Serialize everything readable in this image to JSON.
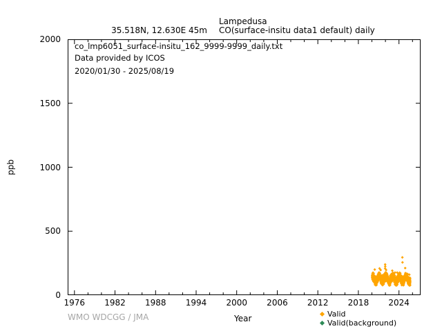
{
  "header": {
    "station": "Lampedusa",
    "location": "35.518N, 12.630E 45m",
    "dataset": "CO(surface-insitu data1 default) daily"
  },
  "plot_annotations": {
    "filename": "co_lmp6051_surface-insitu_162_9999-9999_daily.txt",
    "provider": "Data provided by ICOS",
    "period": "2020/01/30 - 2025/08/19"
  },
  "footer": {
    "credit": "WMO WDCGG / JMA"
  },
  "legend": {
    "items": [
      {
        "label": "Valid",
        "color": "#FFA500"
      },
      {
        "label": "Valid(background)",
        "color": "#2E8B57"
      }
    ]
  },
  "chart_data": {
    "type": "scatter",
    "title": "Lampedusa CO(surface-insitu data1 default) daily",
    "xlabel": "Year",
    "ylabel": "ppb",
    "xlim": [
      1975,
      2027.2
    ],
    "ylim": [
      0,
      2000
    ],
    "xticks_major": [
      1976,
      1982,
      1988,
      1994,
      2000,
      2006,
      2012,
      2018,
      2024
    ],
    "xtick_minor_step": 2,
    "yticks": [
      0,
      500,
      1000,
      1500,
      2000
    ],
    "grid": false,
    "legend_position": "bottom-right",
    "data_period": "2020/01/30 - 2025/08/19",
    "series": [
      {
        "name": "Valid",
        "color": "#FFA500",
        "daily_spread_ppb": 40,
        "monthly_means": [
          [
            2020.08,
            143
          ],
          [
            2020.17,
            146
          ],
          [
            2020.25,
            138
          ],
          [
            2020.33,
            127
          ],
          [
            2020.42,
            114
          ],
          [
            2020.5,
            105
          ],
          [
            2020.58,
            101
          ],
          [
            2020.67,
            106
          ],
          [
            2020.75,
            115
          ],
          [
            2020.83,
            126
          ],
          [
            2020.92,
            136
          ],
          [
            2021.0,
            143
          ],
          [
            2021.08,
            149
          ],
          [
            2021.17,
            146
          ],
          [
            2021.25,
            137
          ],
          [
            2021.33,
            125
          ],
          [
            2021.42,
            112
          ],
          [
            2021.5,
            104
          ],
          [
            2021.58,
            102
          ],
          [
            2021.67,
            109
          ],
          [
            2021.75,
            118
          ],
          [
            2021.83,
            129
          ],
          [
            2021.92,
            139
          ],
          [
            2022.0,
            145
          ],
          [
            2022.08,
            151
          ],
          [
            2022.17,
            147
          ],
          [
            2022.25,
            136
          ],
          [
            2022.33,
            124
          ],
          [
            2022.42,
            111
          ],
          [
            2022.5,
            103
          ],
          [
            2022.58,
            100
          ],
          [
            2022.67,
            107
          ],
          [
            2022.75,
            116
          ],
          [
            2022.83,
            127
          ],
          [
            2022.92,
            138
          ],
          [
            2023.0,
            144
          ],
          [
            2023.08,
            150
          ],
          [
            2023.17,
            145
          ],
          [
            2023.25,
            135
          ],
          [
            2023.33,
            123
          ],
          [
            2023.42,
            110
          ],
          [
            2023.5,
            102
          ],
          [
            2023.58,
            99
          ],
          [
            2023.67,
            105
          ],
          [
            2023.75,
            114
          ],
          [
            2023.83,
            126
          ],
          [
            2023.92,
            137
          ],
          [
            2024.0,
            143
          ],
          [
            2024.08,
            148
          ],
          [
            2024.17,
            144
          ],
          [
            2024.25,
            134
          ],
          [
            2024.33,
            122
          ],
          [
            2024.42,
            112
          ],
          [
            2024.5,
            108
          ],
          [
            2024.58,
            104
          ],
          [
            2024.67,
            110
          ],
          [
            2024.75,
            117
          ],
          [
            2024.83,
            128
          ],
          [
            2024.92,
            138
          ],
          [
            2025.0,
            144
          ],
          [
            2025.08,
            149
          ],
          [
            2025.17,
            145
          ],
          [
            2025.25,
            135
          ],
          [
            2025.33,
            123
          ],
          [
            2025.42,
            111
          ],
          [
            2025.5,
            104
          ],
          [
            2025.58,
            103
          ],
          [
            2025.63,
            105
          ]
        ],
        "outliers": [
          [
            2024.5,
            295
          ],
          [
            2024.52,
            256
          ],
          [
            2021.96,
            240
          ],
          [
            2021.97,
            224
          ],
          [
            2021.95,
            209
          ],
          [
            2024.92,
            212
          ],
          [
            2020.42,
            200
          ],
          [
            2021.3,
            196
          ]
        ]
      },
      {
        "name": "Valid(background)",
        "color": "#2E8B57",
        "monthly_means": [],
        "outliers": []
      }
    ]
  }
}
